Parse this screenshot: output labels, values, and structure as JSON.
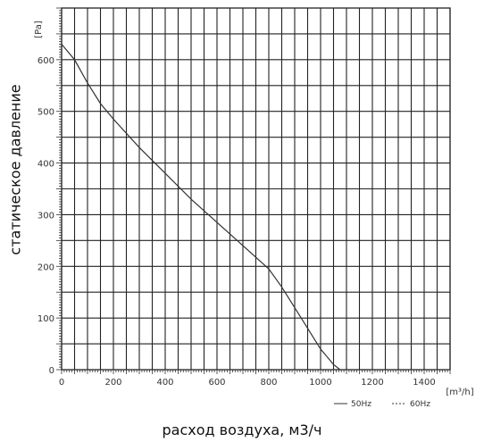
{
  "chart_data": {
    "type": "line",
    "xlabel": "расход воздуха, м3/ч",
    "ylabel": "статическое давление",
    "x_unit": "[m³/h]",
    "y_unit": "[Pa]",
    "xlim": [
      0,
      1500
    ],
    "ylim": [
      0,
      700
    ],
    "x_ticks": [
      0,
      200,
      400,
      600,
      800,
      1000,
      1200,
      1400
    ],
    "y_ticks": [
      0,
      100,
      200,
      300,
      400,
      500,
      600
    ],
    "grid": true,
    "legend": [
      "50Hz",
      "60Hz"
    ],
    "legend_position": "bottom-right",
    "series": [
      {
        "name": "50Hz",
        "x": [
          0,
          50,
          100,
          150,
          200,
          300,
          400,
          500,
          600,
          700,
          800,
          850,
          900,
          950,
          1000,
          1050,
          1075
        ],
        "y": [
          630,
          600,
          555,
          515,
          485,
          430,
          380,
          330,
          285,
          240,
          195,
          160,
          120,
          80,
          40,
          10,
          0
        ]
      }
    ]
  }
}
